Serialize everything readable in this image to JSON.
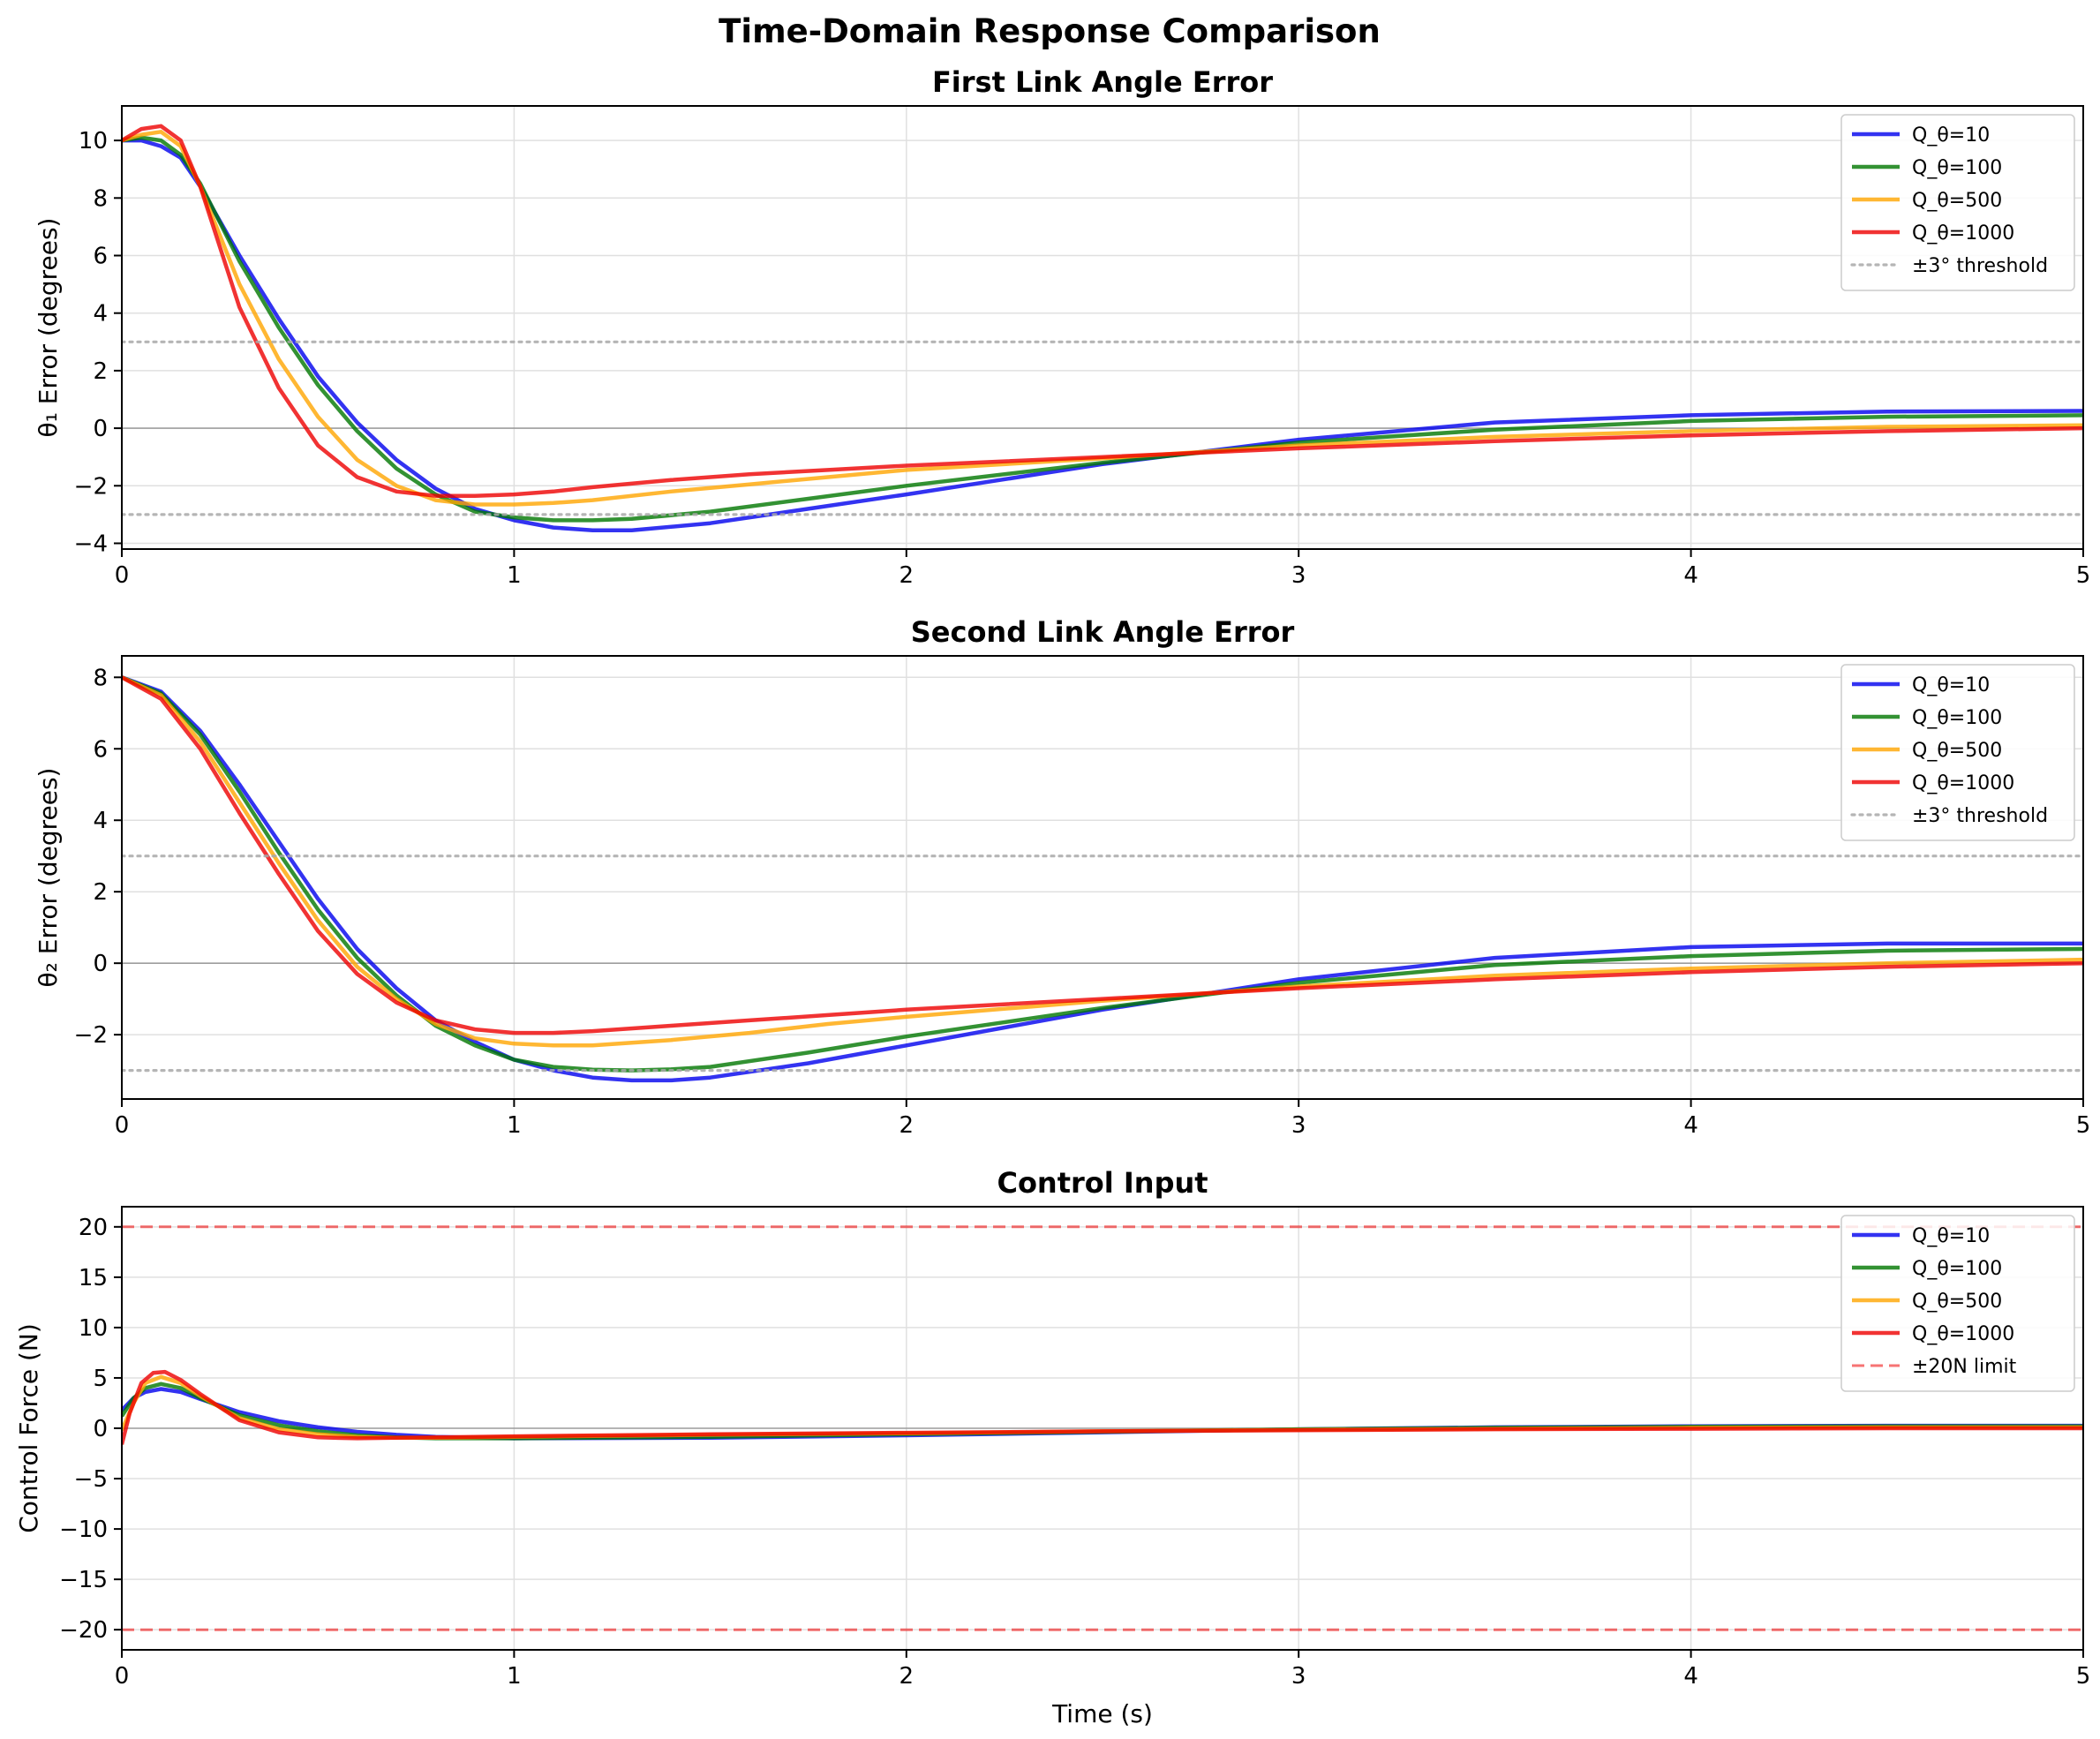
{
  "suptitle": "Time-Domain Response Comparison",
  "series_colors": {
    "Q_θ=10": "#0000ee",
    "Q_θ=100": "#007700",
    "Q_θ=500": "#ffa500",
    "Q_θ=1000": "#ee0000"
  },
  "chart_data": [
    {
      "type": "line",
      "title": "First Link Angle Error",
      "xlabel": "",
      "ylabel": "θ₁ Error (degrees)",
      "xlim": [
        0,
        5
      ],
      "ylim": [
        -4.2,
        11.2
      ],
      "xticks": [
        0,
        1,
        2,
        3,
        4,
        5
      ],
      "yticks": [
        -4,
        -2,
        0,
        2,
        4,
        6,
        8,
        10
      ],
      "grid": true,
      "legend": "top-right",
      "series": [
        {
          "name": "Q_θ=10",
          "x": [
            0,
            0.05,
            0.1,
            0.15,
            0.2,
            0.3,
            0.4,
            0.5,
            0.6,
            0.7,
            0.8,
            0.9,
            1.0,
            1.1,
            1.2,
            1.3,
            1.5,
            1.75,
            2.0,
            2.5,
            3.0,
            3.5,
            4.0,
            4.5,
            5.0
          ],
          "y": [
            10.0,
            10.0,
            9.8,
            9.4,
            8.4,
            6.0,
            3.8,
            1.8,
            0.2,
            -1.1,
            -2.1,
            -2.8,
            -3.2,
            -3.45,
            -3.55,
            -3.55,
            -3.3,
            -2.8,
            -2.3,
            -1.25,
            -0.4,
            0.2,
            0.45,
            0.58,
            0.6
          ]
        },
        {
          "name": "Q_θ=100",
          "x": [
            0,
            0.05,
            0.1,
            0.15,
            0.2,
            0.3,
            0.4,
            0.5,
            0.6,
            0.7,
            0.8,
            0.9,
            1.0,
            1.1,
            1.2,
            1.3,
            1.5,
            1.75,
            2.0,
            2.5,
            3.0,
            3.5,
            4.0,
            4.5,
            5.0
          ],
          "y": [
            10.0,
            10.1,
            10.0,
            9.5,
            8.5,
            5.8,
            3.5,
            1.5,
            -0.1,
            -1.4,
            -2.3,
            -2.9,
            -3.1,
            -3.2,
            -3.2,
            -3.15,
            -2.9,
            -2.45,
            -2.0,
            -1.2,
            -0.5,
            -0.05,
            0.25,
            0.4,
            0.45
          ]
        },
        {
          "name": "Q_θ=500",
          "x": [
            0,
            0.05,
            0.1,
            0.15,
            0.2,
            0.3,
            0.4,
            0.5,
            0.6,
            0.7,
            0.8,
            0.9,
            1.0,
            1.1,
            1.2,
            1.4,
            1.6,
            1.8,
            2.0,
            2.5,
            3.0,
            3.5,
            4.0,
            4.5,
            5.0
          ],
          "y": [
            10.0,
            10.2,
            10.3,
            9.8,
            8.4,
            5.0,
            2.4,
            0.4,
            -1.1,
            -2.0,
            -2.5,
            -2.65,
            -2.65,
            -2.6,
            -2.5,
            -2.2,
            -1.95,
            -1.7,
            -1.45,
            -1.05,
            -0.6,
            -0.3,
            -0.1,
            0.05,
            0.1
          ]
        },
        {
          "name": "Q_θ=1000",
          "x": [
            0,
            0.05,
            0.1,
            0.15,
            0.2,
            0.3,
            0.4,
            0.5,
            0.6,
            0.7,
            0.8,
            0.9,
            1.0,
            1.1,
            1.2,
            1.4,
            1.6,
            1.8,
            2.0,
            2.5,
            3.0,
            3.5,
            4.0,
            4.5,
            5.0
          ],
          "y": [
            10.0,
            10.4,
            10.5,
            10.0,
            8.4,
            4.2,
            1.4,
            -0.6,
            -1.7,
            -2.2,
            -2.35,
            -2.35,
            -2.3,
            -2.2,
            -2.05,
            -1.8,
            -1.6,
            -1.45,
            -1.3,
            -1.0,
            -0.7,
            -0.45,
            -0.25,
            -0.1,
            0.0
          ]
        },
        {
          "name": "±3° threshold",
          "x": [
            0,
            5
          ],
          "y": [
            3,
            3
          ]
        },
        {
          "name": "",
          "x": [
            0,
            5
          ],
          "y": [
            -3,
            -3
          ]
        }
      ]
    },
    {
      "type": "line",
      "title": "Second Link Angle Error",
      "xlabel": "",
      "ylabel": "θ₂ Error (degrees)",
      "xlim": [
        0,
        5
      ],
      "ylim": [
        -3.8,
        8.6
      ],
      "xticks": [
        0,
        1,
        2,
        3,
        4,
        5
      ],
      "yticks": [
        -2,
        0,
        2,
        4,
        6,
        8
      ],
      "grid": true,
      "legend": "top-right",
      "series": [
        {
          "name": "Q_θ=10",
          "x": [
            0,
            0.1,
            0.2,
            0.3,
            0.4,
            0.5,
            0.6,
            0.7,
            0.8,
            0.9,
            1.0,
            1.1,
            1.2,
            1.3,
            1.4,
            1.5,
            1.75,
            2.0,
            2.5,
            3.0,
            3.5,
            4.0,
            4.5,
            5.0
          ],
          "y": [
            8.0,
            7.6,
            6.5,
            5.0,
            3.4,
            1.8,
            0.4,
            -0.7,
            -1.6,
            -2.2,
            -2.7,
            -3.0,
            -3.2,
            -3.28,
            -3.28,
            -3.2,
            -2.8,
            -2.3,
            -1.3,
            -0.45,
            0.15,
            0.45,
            0.55,
            0.55
          ]
        },
        {
          "name": "Q_θ=100",
          "x": [
            0,
            0.1,
            0.2,
            0.3,
            0.4,
            0.5,
            0.6,
            0.7,
            0.8,
            0.9,
            1.0,
            1.1,
            1.2,
            1.3,
            1.4,
            1.5,
            1.75,
            2.0,
            2.5,
            3.0,
            3.5,
            4.0,
            4.5,
            5.0
          ],
          "y": [
            8.0,
            7.55,
            6.4,
            4.8,
            3.1,
            1.5,
            0.15,
            -0.9,
            -1.75,
            -2.3,
            -2.7,
            -2.9,
            -2.98,
            -3.0,
            -2.97,
            -2.9,
            -2.5,
            -2.05,
            -1.25,
            -0.55,
            -0.05,
            0.2,
            0.35,
            0.4
          ]
        },
        {
          "name": "Q_θ=500",
          "x": [
            0,
            0.1,
            0.2,
            0.3,
            0.4,
            0.5,
            0.6,
            0.7,
            0.8,
            0.9,
            1.0,
            1.1,
            1.2,
            1.4,
            1.6,
            1.8,
            2.0,
            2.5,
            3.0,
            3.5,
            4.0,
            4.5,
            5.0
          ],
          "y": [
            8.0,
            7.5,
            6.2,
            4.5,
            2.8,
            1.2,
            -0.1,
            -1.0,
            -1.7,
            -2.1,
            -2.25,
            -2.3,
            -2.3,
            -2.15,
            -1.95,
            -1.7,
            -1.5,
            -1.05,
            -0.65,
            -0.35,
            -0.15,
            0.0,
            0.1
          ]
        },
        {
          "name": "Q_θ=1000",
          "x": [
            0,
            0.1,
            0.2,
            0.3,
            0.4,
            0.5,
            0.6,
            0.7,
            0.8,
            0.9,
            1.0,
            1.1,
            1.2,
            1.4,
            1.6,
            1.8,
            2.0,
            2.5,
            3.0,
            3.5,
            4.0,
            4.5,
            5.0
          ],
          "y": [
            8.0,
            7.4,
            6.0,
            4.2,
            2.5,
            0.9,
            -0.3,
            -1.1,
            -1.6,
            -1.85,
            -1.95,
            -1.95,
            -1.9,
            -1.75,
            -1.6,
            -1.45,
            -1.3,
            -1.0,
            -0.7,
            -0.45,
            -0.25,
            -0.1,
            0.0
          ]
        },
        {
          "name": "±3° threshold",
          "x": [
            0,
            5
          ],
          "y": [
            3,
            3
          ]
        },
        {
          "name": "",
          "x": [
            0,
            5
          ],
          "y": [
            -3,
            -3
          ]
        }
      ]
    },
    {
      "type": "line",
      "title": "Control Input",
      "xlabel": "Time (s)",
      "ylabel": "Control Force (N)",
      "xlim": [
        0,
        5
      ],
      "ylim": [
        -22,
        22
      ],
      "xticks": [
        0,
        1,
        2,
        3,
        4,
        5
      ],
      "yticks": [
        -20,
        -15,
        -10,
        -5,
        0,
        5,
        10,
        15,
        20
      ],
      "grid": true,
      "legend": "top-right",
      "series": [
        {
          "name": "Q_θ=10",
          "x": [
            0,
            0.03,
            0.06,
            0.1,
            0.15,
            0.2,
            0.3,
            0.4,
            0.5,
            0.6,
            0.7,
            0.8,
            1.0,
            1.5,
            2.0,
            2.5,
            3.0,
            3.5,
            4.0,
            4.5,
            5.0
          ],
          "y": [
            1.8,
            3.0,
            3.6,
            3.9,
            3.6,
            2.9,
            1.6,
            0.7,
            0.1,
            -0.35,
            -0.65,
            -0.85,
            -1.0,
            -0.95,
            -0.7,
            -0.4,
            -0.1,
            0.1,
            0.2,
            0.25,
            0.25
          ]
        },
        {
          "name": "Q_θ=100",
          "x": [
            0,
            0.03,
            0.06,
            0.1,
            0.15,
            0.2,
            0.3,
            0.4,
            0.5,
            0.6,
            0.7,
            0.8,
            1.0,
            1.5,
            2.0,
            2.5,
            3.0,
            3.5,
            4.0,
            4.5,
            5.0
          ],
          "y": [
            1.2,
            3.0,
            4.0,
            4.4,
            4.0,
            3.0,
            1.3,
            0.3,
            -0.3,
            -0.7,
            -0.9,
            -1.0,
            -1.0,
            -0.85,
            -0.6,
            -0.35,
            -0.1,
            0.05,
            0.15,
            0.2,
            0.2
          ]
        },
        {
          "name": "Q_θ=500",
          "x": [
            0,
            0.03,
            0.06,
            0.1,
            0.15,
            0.2,
            0.3,
            0.4,
            0.5,
            0.6,
            0.7,
            0.8,
            1.0,
            1.5,
            2.0,
            2.5,
            3.0,
            3.5,
            4.0,
            4.5,
            5.0
          ],
          "y": [
            -0.2,
            2.5,
            4.5,
            5.1,
            4.5,
            3.2,
            1.0,
            -0.1,
            -0.6,
            -0.85,
            -0.95,
            -0.95,
            -0.85,
            -0.65,
            -0.5,
            -0.3,
            -0.15,
            -0.05,
            0.05,
            0.1,
            0.1
          ]
        },
        {
          "name": "Q_θ=1000",
          "x": [
            0,
            0.02,
            0.05,
            0.08,
            0.11,
            0.15,
            0.2,
            0.3,
            0.4,
            0.5,
            0.6,
            0.7,
            0.8,
            1.0,
            1.5,
            2.0,
            2.5,
            3.0,
            3.5,
            4.0,
            4.5,
            5.0
          ],
          "y": [
            -1.6,
            1.5,
            4.5,
            5.5,
            5.6,
            4.8,
            3.4,
            0.8,
            -0.4,
            -0.9,
            -1.0,
            -0.95,
            -0.9,
            -0.8,
            -0.6,
            -0.45,
            -0.3,
            -0.2,
            -0.1,
            -0.05,
            0.0,
            0.0
          ]
        },
        {
          "name": "±20N limit",
          "x": [
            0,
            5
          ],
          "y": [
            20,
            20
          ]
        },
        {
          "name": "",
          "x": [
            0,
            5
          ],
          "y": [
            -20,
            -20
          ]
        }
      ]
    }
  ]
}
